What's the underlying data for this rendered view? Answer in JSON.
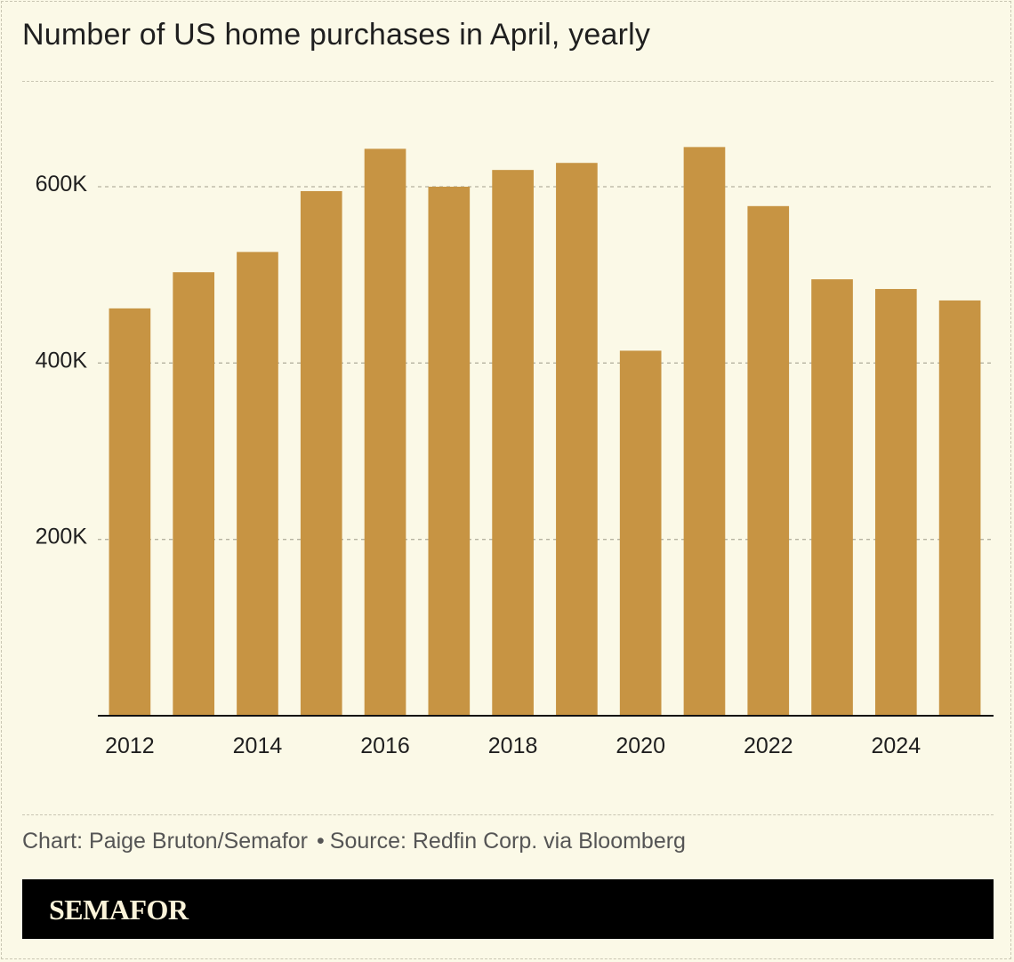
{
  "title": "Number of US home purchases in April, yearly",
  "credit": {
    "chart": "Chart: Paige Bruton/Semafor",
    "separator": "•",
    "source": "Source: Redfin Corp. via Bloomberg"
  },
  "brand": "SEMAFOR",
  "colors": {
    "background": "#fbf9e7",
    "bar": "#c79443",
    "grid": "#b5b2a0",
    "text": "#1f1f1f"
  },
  "chart_data": {
    "type": "bar",
    "categories": [
      "2012",
      "2013",
      "2014",
      "2015",
      "2016",
      "2017",
      "2018",
      "2019",
      "2020",
      "2021",
      "2022",
      "2023",
      "2024",
      "2025"
    ],
    "values": [
      462000,
      503000,
      526000,
      595000,
      643000,
      600000,
      619000,
      627000,
      414000,
      645000,
      578000,
      495000,
      484000,
      471000
    ],
    "x_tick_labels": [
      "2012",
      "2014",
      "2016",
      "2018",
      "2020",
      "2022",
      "2024"
    ],
    "y_ticks": [
      200000,
      400000,
      600000
    ],
    "y_tick_labels": [
      "200K",
      "400K",
      "600K"
    ],
    "ylim": [
      0,
      720000
    ],
    "grid": true,
    "legend": "none"
  }
}
